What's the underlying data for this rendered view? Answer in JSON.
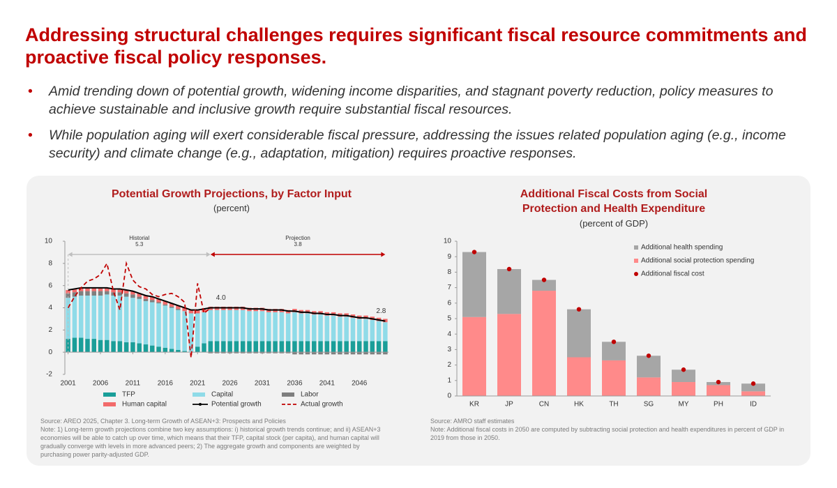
{
  "title": "Addressing structural challenges requires significant fiscal resource commitments and proactive fiscal policy responses.",
  "bullets": [
    "Amid trending down of potential growth, widening income disparities, and stagnant poverty reduction, policy measures to achieve sustainable and inclusive growth require substantial fiscal resources.",
    "While population aging will exert considerable fiscal pressure, addressing the issues related population aging (e.g., income security) and climate change (e.g., adaptation, mitigation) requires proactive responses."
  ],
  "chart_data": [
    {
      "type": "stacked_bar_line",
      "title": "Potential Growth Projections, by Factor Input",
      "subtitle": "(percent)",
      "x": [
        2001,
        2002,
        2003,
        2004,
        2005,
        2006,
        2007,
        2008,
        2009,
        2010,
        2011,
        2012,
        2013,
        2014,
        2015,
        2016,
        2017,
        2018,
        2019,
        2020,
        2021,
        2022,
        2023,
        2024,
        2025,
        2026,
        2027,
        2028,
        2029,
        2030,
        2031,
        2032,
        2033,
        2034,
        2035,
        2036,
        2037,
        2038,
        2039,
        2040,
        2041,
        2042,
        2043,
        2044,
        2045,
        2046,
        2047,
        2048,
        2049,
        2050
      ],
      "xlim": [
        2000.5,
        2050.5
      ],
      "xticks": [
        2001,
        2006,
        2011,
        2016,
        2021,
        2026,
        2031,
        2036,
        2041,
        2046
      ],
      "ylim": [
        -2,
        10
      ],
      "yticks": [
        -2,
        0,
        2,
        4,
        6,
        8,
        10
      ],
      "series": [
        {
          "name": "TFP",
          "color": "#1a9e99",
          "kind": "bar",
          "values": [
            1.2,
            1.3,
            1.3,
            1.2,
            1.2,
            1.1,
            1.1,
            1.0,
            1.0,
            0.9,
            0.9,
            0.8,
            0.7,
            0.6,
            0.5,
            0.4,
            0.3,
            0.2,
            0.1,
            0.0,
            0.5,
            0.8,
            1.0,
            1.0,
            1.0,
            1.0,
            1.0,
            1.0,
            1.0,
            1.0,
            1.0,
            1.0,
            1.0,
            1.0,
            1.0,
            1.0,
            1.0,
            1.0,
            1.0,
            1.0,
            1.0,
            1.0,
            1.0,
            1.0,
            1.0,
            1.0,
            1.0,
            1.0,
            1.0,
            1.0
          ]
        },
        {
          "name": "Capital",
          "color": "#8fdbe8",
          "kind": "bar",
          "values": [
            3.7,
            3.7,
            3.8,
            3.9,
            3.9,
            4.0,
            4.1,
            4.1,
            4.1,
            4.1,
            4.0,
            4.0,
            3.9,
            3.9,
            3.9,
            3.8,
            3.7,
            3.6,
            3.6,
            3.5,
            3.0,
            2.8,
            2.8,
            2.8,
            2.8,
            2.8,
            2.8,
            2.8,
            2.7,
            2.7,
            2.7,
            2.6,
            2.6,
            2.6,
            2.5,
            2.6,
            2.5,
            2.5,
            2.4,
            2.4,
            2.3,
            2.3,
            2.2,
            2.2,
            2.1,
            2.0,
            2.0,
            1.9,
            1.8,
            1.7
          ]
        },
        {
          "name": "Labor",
          "color": "#7f7f7f",
          "kind": "bar",
          "values": [
            0.4,
            0.4,
            0.4,
            0.4,
            0.4,
            0.4,
            0.3,
            0.3,
            0.3,
            0.3,
            0.3,
            0.2,
            0.2,
            0.2,
            0.1,
            0.1,
            0.1,
            0.1,
            0.0,
            0.0,
            0.0,
            0.0,
            -0.1,
            -0.1,
            -0.1,
            -0.1,
            -0.1,
            -0.1,
            -0.1,
            -0.1,
            -0.1,
            -0.1,
            -0.1,
            -0.1,
            -0.1,
            -0.2,
            -0.2,
            -0.2,
            -0.2,
            -0.2,
            -0.2,
            -0.2,
            -0.2,
            -0.2,
            -0.2,
            -0.2,
            -0.2,
            -0.2,
            -0.2,
            -0.2
          ]
        },
        {
          "name": "Human capital",
          "color": "#f26b6b",
          "kind": "bar",
          "values": [
            0.3,
            0.3,
            0.3,
            0.3,
            0.3,
            0.3,
            0.3,
            0.3,
            0.3,
            0.3,
            0.3,
            0.3,
            0.3,
            0.3,
            0.3,
            0.3,
            0.3,
            0.3,
            0.3,
            0.3,
            0.3,
            0.3,
            0.3,
            0.3,
            0.3,
            0.3,
            0.3,
            0.3,
            0.3,
            0.3,
            0.3,
            0.3,
            0.3,
            0.3,
            0.3,
            0.3,
            0.3,
            0.3,
            0.3,
            0.3,
            0.3,
            0.3,
            0.3,
            0.3,
            0.3,
            0.3,
            0.3,
            0.3,
            0.3,
            0.3
          ]
        },
        {
          "name": "Potential growth",
          "color": "#000000",
          "kind": "line",
          "values": [
            5.6,
            5.7,
            5.8,
            5.8,
            5.8,
            5.8,
            5.8,
            5.7,
            5.7,
            5.6,
            5.5,
            5.3,
            5.1,
            5.0,
            4.8,
            4.6,
            4.4,
            4.2,
            4.0,
            3.8,
            3.8,
            3.9,
            4.0,
            4.0,
            4.0,
            4.0,
            4.0,
            4.0,
            3.9,
            3.9,
            3.9,
            3.8,
            3.8,
            3.8,
            3.7,
            3.7,
            3.6,
            3.6,
            3.5,
            3.5,
            3.4,
            3.4,
            3.3,
            3.3,
            3.2,
            3.1,
            3.1,
            3.0,
            2.9,
            2.8
          ],
          "value_labels": [
            null,
            null,
            null,
            null,
            null,
            null,
            null,
            null,
            null,
            null,
            null,
            null,
            null,
            null,
            null,
            null,
            null,
            null,
            null,
            null,
            null,
            null,
            "4.0",
            null,
            null,
            null,
            null,
            null,
            null,
            null,
            null,
            null,
            null,
            null,
            null,
            null,
            null,
            null,
            null,
            null,
            null,
            null,
            null,
            null,
            null,
            null,
            null,
            null,
            null,
            "2.8"
          ]
        },
        {
          "name": "Actual growth",
          "color": "#c00000",
          "kind": "line",
          "dashed": true,
          "values": [
            4.0,
            5.0,
            5.8,
            6.4,
            6.6,
            7.0,
            8.0,
            5.5,
            3.8,
            8.0,
            6.5,
            5.9,
            5.7,
            5.2,
            5.0,
            5.2,
            5.3,
            5.0,
            4.5,
            -0.5,
            6.2,
            3.5,
            4.0,
            null,
            null,
            null,
            null,
            null,
            null,
            null,
            null,
            null,
            null,
            null,
            null,
            null,
            null,
            null,
            null,
            null,
            null,
            null,
            null,
            null,
            null,
            null,
            null,
            null,
            null,
            null
          ]
        }
      ],
      "periods": [
        {
          "label": "Historial",
          "value": 5.3,
          "span": [
            2001,
            2023
          ],
          "color": "#bfbfbf"
        },
        {
          "label": "Projection",
          "value": 3.8,
          "span": [
            2023,
            2050
          ],
          "color": "#c00000"
        }
      ],
      "source": "Source: AREO 2025, Chapter 3. Long-term Growth of ASEAN+3: Prospects and Policies",
      "note": "Note: 1) Long-term growth projections combine two key assumptions: i) historical growth trends continue; and ii) ASEAN+3 economies will be able to catch up over time, which means that their TFP, capital stock (per capita), and human capital will gradually converge with levels in more advanced peers; 2) The aggregate growth and components are weighted by purchasing power parity-adjusted GDP."
    },
    {
      "type": "stacked_bar_dot",
      "title": "Additional Fiscal Costs from Social Protection and Health Expenditure",
      "subtitle": "(percent of GDP)",
      "categories": [
        "KR",
        "JP",
        "CN",
        "HK",
        "TH",
        "SG",
        "MY",
        "PH",
        "ID"
      ],
      "ylim": [
        0,
        10
      ],
      "yticks": [
        0,
        1,
        2,
        3,
        4,
        5,
        6,
        7,
        8,
        9,
        10
      ],
      "series": [
        {
          "name": "Additional health spending",
          "color": "#a6a6a6",
          "kind": "bar",
          "values": [
            4.2,
            2.9,
            0.7,
            3.1,
            1.2,
            1.4,
            0.8,
            0.2,
            0.5
          ]
        },
        {
          "name": "Additional social protection spending",
          "color": "#ff8a8a",
          "kind": "bar",
          "values": [
            5.1,
            5.3,
            6.8,
            2.5,
            2.3,
            1.2,
            0.9,
            0.7,
            0.3
          ]
        },
        {
          "name": "Additional fiscal cost",
          "color": "#c00000",
          "kind": "dot",
          "values": [
            9.3,
            8.2,
            7.5,
            5.6,
            3.5,
            2.6,
            1.7,
            0.9,
            0.8
          ]
        }
      ],
      "source": "Source: AMRO staff estimates",
      "note": "Note: Additional fiscal costs in 2050 are computed by subtracting social protection and health expenditures in percent of GDP in 2019 from those in 2050."
    }
  ]
}
